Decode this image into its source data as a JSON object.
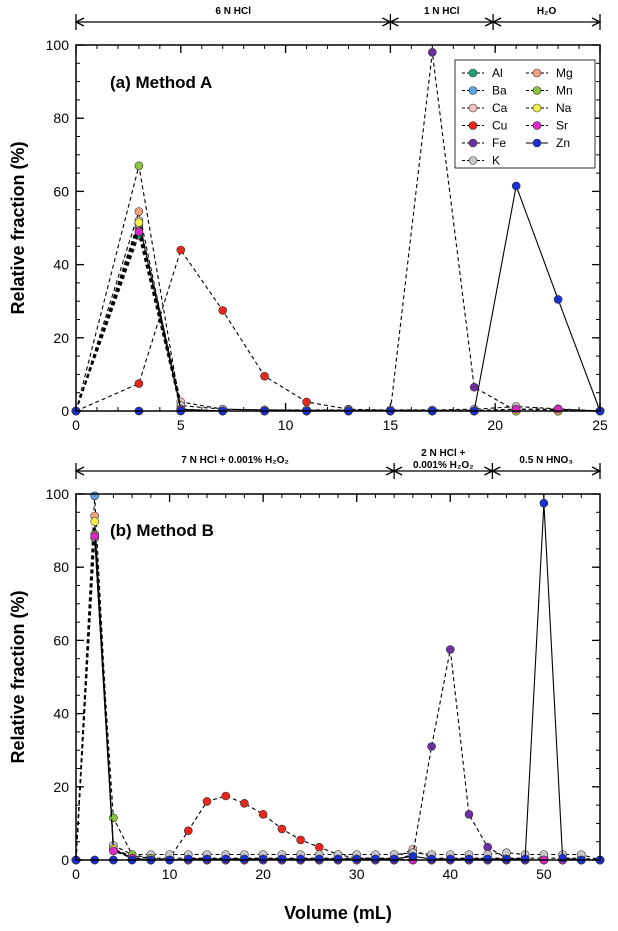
{
  "chart_data": [
    {
      "type": "line",
      "title": "(a) Method A",
      "xlabel": "",
      "ylabel": "Relative fraction (%)",
      "xlim": [
        0,
        25
      ],
      "ylim": [
        0,
        100
      ],
      "xticks": [
        0,
        5,
        10,
        15,
        20,
        25
      ],
      "yticks": [
        0,
        20,
        40,
        60,
        80,
        100
      ],
      "regions": [
        {
          "label": "6 N HCl",
          "from": 0,
          "to": 15
        },
        {
          "label": "1 N HCl",
          "from": 15,
          "to": 19.9
        },
        {
          "label": "H₂O",
          "from": 19.9,
          "to": 25
        }
      ],
      "legend_position": "top-right",
      "x": [
        0,
        3,
        5,
        7,
        9,
        11,
        13,
        15,
        17,
        19,
        21,
        23,
        25
      ],
      "series": [
        {
          "name": "Al",
          "color": "#1fa37a",
          "line": "dashed",
          "values": [
            0,
            48,
            0.3,
            0,
            0,
            0,
            0,
            0,
            0,
            0,
            0,
            0,
            0
          ]
        },
        {
          "name": "Ba",
          "color": "#5ba3e6",
          "line": "dashed",
          "values": [
            0,
            50,
            0.3,
            0,
            0,
            0,
            0,
            0,
            0,
            0,
            0,
            0,
            0
          ]
        },
        {
          "name": "Ca",
          "color": "#f2c2c0",
          "line": "dashed",
          "values": [
            0,
            52,
            2.5,
            0.5,
            0.3,
            0.2,
            0.2,
            0.2,
            0.2,
            0.2,
            0.5,
            0.3,
            0
          ]
        },
        {
          "name": "Cu",
          "color": "#e8261a",
          "line": "dashed",
          "values": [
            0,
            7.5,
            44,
            27.5,
            9.5,
            2.5,
            0.5,
            0.2,
            0,
            0,
            0,
            0,
            0
          ]
        },
        {
          "name": "Fe",
          "color": "#6b2fa0",
          "line": "dashed",
          "values": [
            0,
            0,
            0,
            0,
            0,
            0,
            0,
            0,
            98,
            6.5,
            0,
            0,
            0
          ]
        },
        {
          "name": "K",
          "color": "#c8c8c8",
          "line": "dashed",
          "values": [
            0,
            51,
            1.5,
            0.5,
            0.3,
            0.3,
            0.3,
            0.3,
            0.3,
            0.5,
            1.2,
            0.6,
            0
          ]
        },
        {
          "name": "Mg",
          "color": "#f4a07a",
          "line": "dashed",
          "values": [
            0,
            54.5,
            0.5,
            0,
            0,
            0,
            0,
            0,
            0,
            0,
            0,
            0,
            0
          ]
        },
        {
          "name": "Mn",
          "color": "#8ac43f",
          "line": "dashed",
          "values": [
            0,
            67,
            0.5,
            0,
            0,
            0,
            0,
            0,
            0,
            0,
            0,
            0,
            0
          ]
        },
        {
          "name": "Na",
          "color": "#f4f04a",
          "line": "dashed",
          "values": [
            0,
            51.5,
            0.5,
            0,
            0,
            0,
            0,
            0,
            0,
            0,
            0,
            0,
            0
          ]
        },
        {
          "name": "Sr",
          "color": "#e026c8",
          "line": "dashed",
          "values": [
            0,
            49,
            0.3,
            0,
            0,
            0,
            0,
            0,
            0,
            0,
            0.5,
            0.5,
            0
          ]
        },
        {
          "name": "Zn",
          "color": "#1a2fd6",
          "line": "solid",
          "values": [
            0,
            0,
            0,
            0,
            0,
            0,
            0,
            0,
            0,
            0,
            61.5,
            30.5,
            0
          ]
        }
      ]
    },
    {
      "type": "line",
      "title": "(b) Method B",
      "xlabel": "Volume (mL)",
      "ylabel": "Relative fraction (%)",
      "xlim": [
        0,
        56
      ],
      "ylim": [
        0,
        100
      ],
      "xticks": [
        0,
        10,
        20,
        30,
        40,
        50
      ],
      "yticks": [
        0,
        20,
        40,
        60,
        80,
        100
      ],
      "regions": [
        {
          "label": "7 N HCl + 0.001% H₂O₂",
          "from": 0,
          "to": 34
        },
        {
          "label_lines": [
            "2 N HCl +",
            "0.001% H₂O₂"
          ],
          "from": 34,
          "to": 44.5
        },
        {
          "label": "0.5 N HNO₃",
          "from": 44.5,
          "to": 56
        }
      ],
      "x": [
        0,
        2,
        4,
        6,
        8,
        10,
        12,
        14,
        16,
        18,
        20,
        22,
        24,
        26,
        28,
        30,
        32,
        34,
        36,
        38,
        40,
        42,
        44,
        46,
        48,
        50,
        52,
        54,
        56
      ],
      "series": [
        {
          "name": "Al",
          "values": [
            0,
            88,
            3,
            0.5,
            0,
            0,
            0,
            0,
            0,
            0,
            0,
            0,
            0,
            0,
            0,
            0,
            0,
            0,
            0,
            0,
            0,
            0,
            0,
            0,
            0,
            0,
            0,
            0,
            0
          ]
        },
        {
          "name": "Ba",
          "values": [
            0,
            99.5,
            3,
            0.5,
            0,
            0,
            0,
            0,
            0,
            0,
            0,
            0,
            0,
            0,
            0,
            0,
            0,
            0,
            0,
            0,
            0,
            0,
            0,
            0,
            0,
            0,
            0,
            0,
            0
          ]
        },
        {
          "name": "Ca",
          "values": [
            0,
            88,
            3,
            1,
            0.5,
            0.5,
            0.5,
            0.5,
            0.5,
            0.5,
            0.5,
            0.5,
            0.5,
            0.5,
            0.5,
            0.5,
            0.5,
            0.5,
            3,
            0.5,
            0.5,
            0.5,
            0.5,
            0.5,
            0.5,
            0.5,
            0.5,
            0.5,
            0
          ]
        },
        {
          "name": "Cu",
          "values": [
            0,
            0,
            0,
            0,
            0,
            0.5,
            8,
            16,
            17.5,
            15.5,
            12.5,
            8.5,
            5.5,
            3.5,
            1.5,
            0.5,
            0.5,
            0.3,
            0,
            0,
            0,
            0,
            0,
            0,
            0,
            0,
            0,
            0,
            0
          ]
        },
        {
          "name": "Fe",
          "values": [
            0,
            0,
            0,
            0,
            0,
            0,
            0,
            0,
            0,
            0,
            0,
            0,
            0,
            0,
            0,
            0,
            0,
            0,
            1.5,
            31,
            57.5,
            12.5,
            3.5,
            0.5,
            0,
            0,
            0,
            0,
            0
          ]
        },
        {
          "name": "K",
          "values": [
            0,
            88,
            4,
            1.5,
            1.5,
            1.5,
            1.5,
            1.5,
            1.5,
            1.5,
            1.5,
            1.5,
            1.5,
            1.5,
            1.5,
            1.5,
            1.5,
            1.5,
            2,
            1.5,
            1.5,
            1.5,
            1.5,
            2,
            1.5,
            1.5,
            1.5,
            1.5,
            0
          ]
        },
        {
          "name": "Mg",
          "values": [
            0,
            94,
            3,
            0.5,
            0,
            0,
            0,
            0,
            0,
            0,
            0,
            0,
            0,
            0,
            0,
            0,
            0,
            0,
            0,
            0,
            0,
            0,
            0,
            0,
            0,
            0,
            0,
            0,
            0
          ]
        },
        {
          "name": "Mn",
          "values": [
            0,
            89,
            11.5,
            1.5,
            0.5,
            0,
            0,
            0,
            0,
            0,
            0,
            0,
            0,
            0,
            0,
            0,
            0,
            0,
            0,
            0,
            0,
            0,
            0,
            0,
            0,
            0,
            0,
            0,
            0
          ]
        },
        {
          "name": "Na",
          "values": [
            0,
            92.5,
            3,
            0.5,
            0,
            0,
            0,
            0,
            0,
            0,
            0,
            0,
            0,
            0,
            0,
            0,
            0,
            0,
            0,
            0,
            0,
            0,
            0,
            0,
            0,
            0,
            0,
            0,
            0
          ]
        },
        {
          "name": "Sr",
          "values": [
            0,
            88.5,
            2.5,
            0.5,
            0,
            0,
            0,
            0,
            0,
            0,
            0,
            0,
            0,
            0,
            0,
            0,
            0,
            0,
            0,
            0,
            0,
            0,
            0,
            0,
            0,
            0,
            0,
            0,
            0
          ]
        },
        {
          "name": "Zn",
          "values": [
            0,
            0,
            0,
            0,
            0,
            0,
            0.3,
            0.3,
            0.3,
            0.3,
            0.3,
            0.3,
            0.3,
            0.3,
            0.3,
            0.3,
            0.3,
            0.3,
            1,
            0.3,
            0.3,
            0.3,
            0.3,
            0.3,
            0.3,
            97.5,
            0.5,
            0,
            0
          ]
        }
      ]
    }
  ]
}
